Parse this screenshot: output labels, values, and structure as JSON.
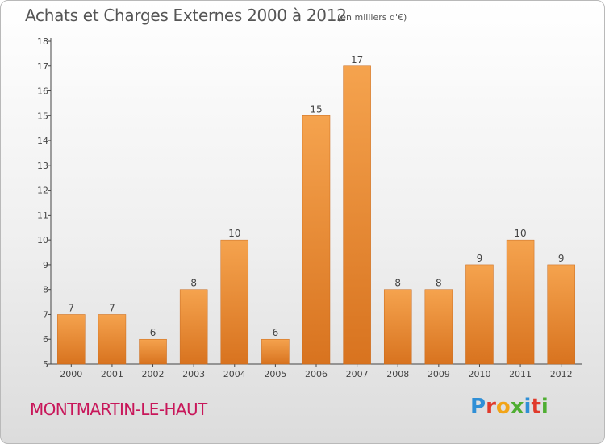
{
  "header": {
    "title": "Achats et Charges Externes 2000 à 2012",
    "unit": "(en milliers d'€)"
  },
  "footer": {
    "commune": "MONTMARTIN-LE-HAUT",
    "logo": "Proxiti",
    "logo_colors": [
      "#2f8fd6",
      "#e03a2b",
      "#f2a417",
      "#4fae32",
      "#2f8fd6",
      "#e03a2b",
      "#4fae32"
    ]
  },
  "chart_data": {
    "type": "bar",
    "categories": [
      "2000",
      "2001",
      "2002",
      "2003",
      "2004",
      "2005",
      "2006",
      "2007",
      "2008",
      "2009",
      "2010",
      "2011",
      "2012"
    ],
    "values": [
      7,
      7,
      6,
      8,
      10,
      6,
      15,
      17,
      8,
      8,
      9,
      10,
      9
    ],
    "title": "Achats et Charges Externes 2000 à 2012",
    "ylim": [
      5,
      18
    ],
    "yticks": [
      5,
      6,
      7,
      8,
      9,
      10,
      11,
      12,
      13,
      14,
      15,
      16,
      17,
      18
    ],
    "grid": false,
    "bar_color_top": "#f5a34e",
    "bar_color_bottom": "#d8731f",
    "bar_edge": "#c9691a"
  }
}
